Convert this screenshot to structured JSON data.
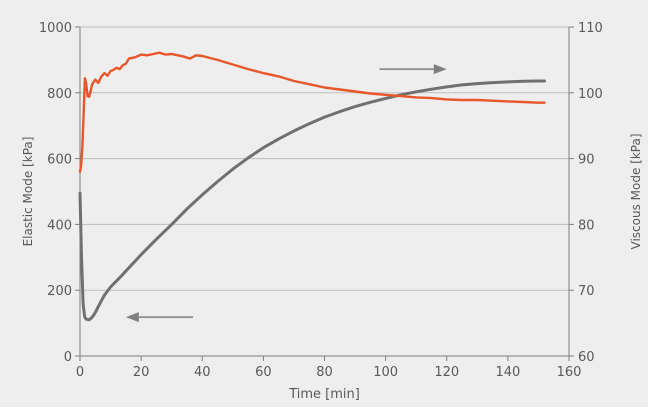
{
  "chart_data": {
    "type": "line",
    "title": "",
    "xlabel": "Time [min]",
    "ylabel_left": "Elastic Mode [kPa]",
    "ylabel_right": "Viscous Mode [kPa]",
    "xlim": [
      0,
      160
    ],
    "ylim_left": [
      0,
      1000
    ],
    "ylim_right": [
      60,
      110
    ],
    "x_ticks": [
      "0",
      "20",
      "40",
      "60",
      "80",
      "100",
      "120",
      "140",
      "160"
    ],
    "y_left_ticks": [
      "0",
      "200",
      "400",
      "600",
      "800",
      "1000"
    ],
    "y_right_ticks": [
      "60",
      "70",
      "80",
      "90",
      "100",
      "110"
    ],
    "grid": true,
    "background_color": "#eeeeee",
    "series": [
      {
        "axis": "left",
        "color": "#707070",
        "x": [
          0,
          0.5,
          1,
          1.5,
          2,
          3,
          4,
          5,
          6,
          7,
          8,
          10,
          13,
          16,
          20,
          25,
          30,
          35,
          40,
          45,
          50,
          55,
          60,
          65,
          70,
          75,
          80,
          85,
          90,
          95,
          100,
          105,
          110,
          115,
          120,
          125,
          130,
          135,
          140,
          145,
          150,
          152
        ],
        "values": [
          495,
          300,
          160,
          120,
          112,
          110,
          118,
          132,
          150,
          168,
          185,
          210,
          238,
          268,
          308,
          355,
          400,
          447,
          490,
          530,
          568,
          602,
          633,
          660,
          684,
          706,
          726,
          743,
          758,
          771,
          783,
          794,
          803,
          811,
          818,
          824,
          828,
          831,
          833,
          835,
          836,
          836
        ]
      },
      {
        "axis": "right",
        "color": "#e8562a",
        "x": [
          0,
          0.4,
          0.8,
          1.2,
          1.6,
          2,
          2.5,
          3,
          3.5,
          4,
          5,
          6,
          7,
          8,
          9,
          10,
          11,
          12,
          13,
          14,
          15,
          16,
          18,
          20,
          22,
          24,
          26,
          28,
          30,
          32,
          34,
          36,
          38,
          40,
          45,
          50,
          55,
          60,
          65,
          70,
          75,
          80,
          85,
          90,
          95,
          100,
          105,
          110,
          115,
          120,
          125,
          130,
          135,
          140,
          145,
          150,
          152
        ],
        "values": [
          88,
          89,
          92,
          97,
          102.2,
          101.5,
          99.5,
          99.4,
          100.3,
          101.3,
          102,
          101.5,
          102.5,
          103,
          102.6,
          103.3,
          103.5,
          103.8,
          103.6,
          104.2,
          104.4,
          105.2,
          105.4,
          105.8,
          105.7,
          105.9,
          106.1,
          105.8,
          105.9,
          105.7,
          105.5,
          105.2,
          105.7,
          105.6,
          105,
          104.3,
          103.6,
          103,
          102.5,
          101.8,
          101.3,
          100.8,
          100.5,
          100.2,
          99.9,
          99.7,
          99.5,
          99.3,
          99.2,
          99,
          98.9,
          98.9,
          98.8,
          98.7,
          98.6,
          98.5,
          98.5
        ]
      }
    ],
    "annotations": [
      {
        "type": "arrow",
        "direction": "right",
        "points_to_axis": "right",
        "x_from": 98,
        "x_to": 120,
        "y_left": 872
      },
      {
        "type": "arrow",
        "direction": "left",
        "points_to_axis": "left",
        "x_from": 37,
        "x_to": 15,
        "y_left": 118
      }
    ]
  }
}
